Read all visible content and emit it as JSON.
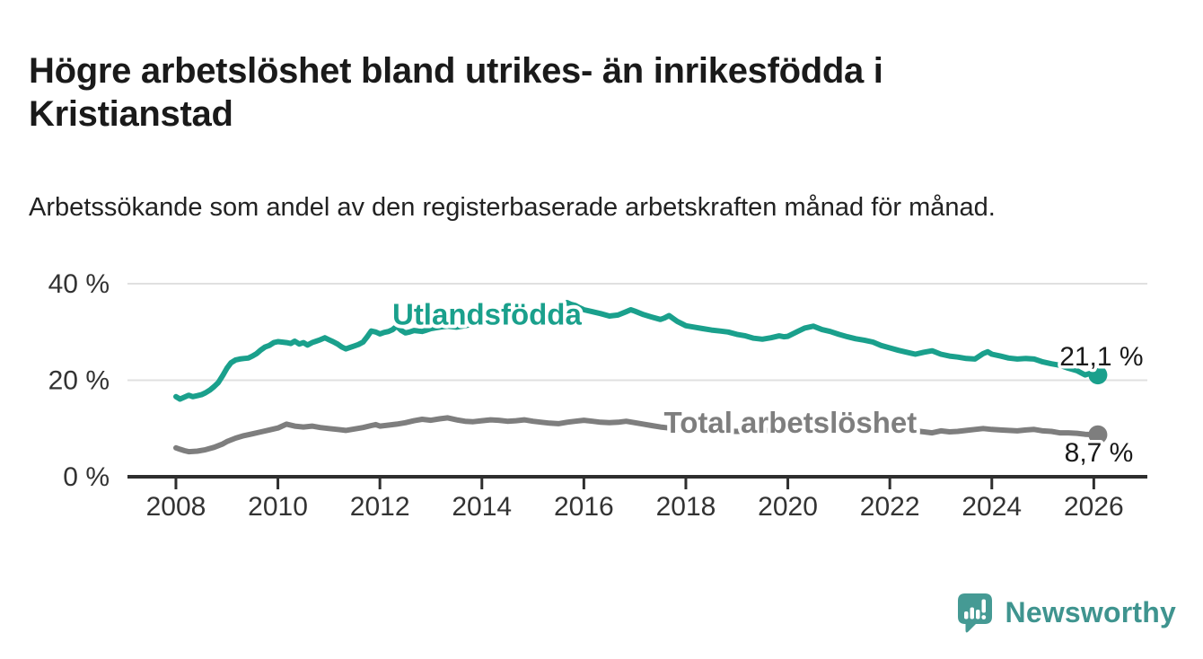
{
  "header": {
    "title": "Högre arbetslöshet bland utrikes- än inrikesfödda i Kristianstad",
    "subtitle": "Arbetssökande som andel av den registerbaserade arbetskraften månad för månad."
  },
  "chart_data": {
    "type": "line",
    "unit": "%",
    "grid": "horizontal",
    "legend_position": "inline-labels",
    "x_axis": {
      "range": [
        2007.05,
        2027.05
      ],
      "ticks": [
        2008,
        2010,
        2012,
        2014,
        2016,
        2018,
        2020,
        2022,
        2024,
        2026
      ]
    },
    "y_axis": {
      "range": [
        0,
        40
      ],
      "ticks": [
        {
          "v": 0,
          "label": "0 %"
        },
        {
          "v": 20,
          "label": "20 %"
        },
        {
          "v": 40,
          "label": "40 %"
        }
      ]
    },
    "colors": {
      "axis": "#2e2e2e",
      "gridline": "#e0e0e0",
      "tick_label": "#333333"
    },
    "series": [
      {
        "id": "utlandsfodda",
        "name": "Utlandsfödda",
        "color": "#1aa08c",
        "label_pos": {
          "x": 2014.1,
          "y": 33.6
        },
        "end_annotation": {
          "text": "21,1 %",
          "x": 2026.15,
          "y": 24.9
        },
        "end_value": 21.1,
        "points": [
          [
            2008.0,
            16.6
          ],
          [
            2008.08,
            16.1
          ],
          [
            2008.17,
            16.5
          ],
          [
            2008.25,
            16.9
          ],
          [
            2008.33,
            16.6
          ],
          [
            2008.42,
            16.8
          ],
          [
            2008.5,
            17.0
          ],
          [
            2008.58,
            17.4
          ],
          [
            2008.67,
            18.0
          ],
          [
            2008.75,
            18.7
          ],
          [
            2008.83,
            19.5
          ],
          [
            2008.92,
            21.0
          ],
          [
            2009.0,
            22.5
          ],
          [
            2009.08,
            23.6
          ],
          [
            2009.17,
            24.2
          ],
          [
            2009.25,
            24.4
          ],
          [
            2009.33,
            24.5
          ],
          [
            2009.42,
            24.6
          ],
          [
            2009.5,
            25.0
          ],
          [
            2009.58,
            25.5
          ],
          [
            2009.67,
            26.3
          ],
          [
            2009.75,
            26.9
          ],
          [
            2009.83,
            27.2
          ],
          [
            2009.92,
            27.8
          ],
          [
            2010.0,
            28.0
          ],
          [
            2010.08,
            27.9
          ],
          [
            2010.17,
            27.8
          ],
          [
            2010.25,
            27.6
          ],
          [
            2010.33,
            28.1
          ],
          [
            2010.42,
            27.5
          ],
          [
            2010.5,
            27.8
          ],
          [
            2010.58,
            27.3
          ],
          [
            2010.67,
            27.8
          ],
          [
            2010.75,
            28.1
          ],
          [
            2010.83,
            28.4
          ],
          [
            2010.92,
            28.8
          ],
          [
            2011.0,
            28.4
          ],
          [
            2011.08,
            28.0
          ],
          [
            2011.17,
            27.5
          ],
          [
            2011.25,
            26.9
          ],
          [
            2011.33,
            26.5
          ],
          [
            2011.42,
            26.8
          ],
          [
            2011.5,
            27.1
          ],
          [
            2011.58,
            27.4
          ],
          [
            2011.67,
            27.9
          ],
          [
            2011.75,
            29.0
          ],
          [
            2011.83,
            30.2
          ],
          [
            2011.92,
            30.0
          ],
          [
            2012.0,
            29.6
          ],
          [
            2012.08,
            29.9
          ],
          [
            2012.17,
            30.1
          ],
          [
            2012.25,
            30.5
          ],
          [
            2012.33,
            31.2
          ],
          [
            2012.42,
            30.3
          ],
          [
            2012.5,
            29.8
          ],
          [
            2012.58,
            30.0
          ],
          [
            2012.67,
            30.3
          ],
          [
            2012.83,
            30.1
          ],
          [
            2012.92,
            30.4
          ],
          [
            2013.0,
            30.7
          ],
          [
            2013.17,
            31.0
          ],
          [
            2013.33,
            31.2
          ],
          [
            2013.5,
            31.0
          ],
          [
            2013.67,
            31.3
          ],
          [
            2013.83,
            31.6
          ],
          [
            2014.0,
            31.9
          ],
          [
            2014.17,
            32.2
          ],
          [
            2014.33,
            32.0
          ],
          [
            2014.5,
            32.4
          ],
          [
            2014.67,
            32.8
          ],
          [
            2014.83,
            33.1
          ],
          [
            2015.0,
            33.0
          ],
          [
            2015.17,
            33.5
          ],
          [
            2015.33,
            34.2
          ],
          [
            2015.5,
            35.0
          ],
          [
            2015.58,
            35.4
          ],
          [
            2015.67,
            36.1
          ],
          [
            2015.75,
            35.7
          ],
          [
            2015.83,
            35.5
          ],
          [
            2015.92,
            35.0
          ],
          [
            2016.0,
            34.6
          ],
          [
            2016.17,
            34.2
          ],
          [
            2016.33,
            33.8
          ],
          [
            2016.5,
            33.3
          ],
          [
            2016.67,
            33.5
          ],
          [
            2016.83,
            34.2
          ],
          [
            2016.92,
            34.6
          ],
          [
            2017.0,
            34.3
          ],
          [
            2017.17,
            33.6
          ],
          [
            2017.33,
            33.1
          ],
          [
            2017.5,
            32.6
          ],
          [
            2017.58,
            32.9
          ],
          [
            2017.67,
            33.4
          ],
          [
            2017.83,
            32.2
          ],
          [
            2018.0,
            31.3
          ],
          [
            2018.17,
            31.0
          ],
          [
            2018.33,
            30.7
          ],
          [
            2018.5,
            30.4
          ],
          [
            2018.67,
            30.2
          ],
          [
            2018.83,
            30.0
          ],
          [
            2019.0,
            29.5
          ],
          [
            2019.17,
            29.2
          ],
          [
            2019.33,
            28.7
          ],
          [
            2019.5,
            28.5
          ],
          [
            2019.67,
            28.8
          ],
          [
            2019.83,
            29.2
          ],
          [
            2019.92,
            29.0
          ],
          [
            2020.0,
            29.1
          ],
          [
            2020.17,
            30.0
          ],
          [
            2020.33,
            30.8
          ],
          [
            2020.5,
            31.2
          ],
          [
            2020.67,
            30.5
          ],
          [
            2020.83,
            30.1
          ],
          [
            2021.0,
            29.5
          ],
          [
            2021.17,
            29.0
          ],
          [
            2021.33,
            28.6
          ],
          [
            2021.5,
            28.3
          ],
          [
            2021.67,
            27.9
          ],
          [
            2021.83,
            27.2
          ],
          [
            2022.0,
            26.7
          ],
          [
            2022.17,
            26.2
          ],
          [
            2022.33,
            25.8
          ],
          [
            2022.5,
            25.4
          ],
          [
            2022.67,
            25.8
          ],
          [
            2022.83,
            26.1
          ],
          [
            2023.0,
            25.4
          ],
          [
            2023.17,
            25.0
          ],
          [
            2023.33,
            24.8
          ],
          [
            2023.5,
            24.5
          ],
          [
            2023.67,
            24.4
          ],
          [
            2023.83,
            25.5
          ],
          [
            2023.92,
            25.9
          ],
          [
            2024.0,
            25.4
          ],
          [
            2024.17,
            25.0
          ],
          [
            2024.33,
            24.6
          ],
          [
            2024.5,
            24.4
          ],
          [
            2024.67,
            24.5
          ],
          [
            2024.83,
            24.4
          ],
          [
            2025.0,
            23.8
          ],
          [
            2025.17,
            23.4
          ],
          [
            2025.33,
            23.1
          ],
          [
            2025.5,
            22.5
          ],
          [
            2025.67,
            22.0
          ],
          [
            2025.83,
            21.1
          ],
          [
            2025.92,
            21.4
          ],
          [
            2026.08,
            21.1
          ]
        ]
      },
      {
        "id": "total",
        "name": "Total arbetslöshet",
        "color": "#7e7e7e",
        "label_pos": {
          "x": 2020.05,
          "y": 11.2
        },
        "end_annotation": {
          "text": "8,7 %",
          "x": 2026.1,
          "y": 5.0
        },
        "end_value": 8.7,
        "points": [
          [
            2008.0,
            6.0
          ],
          [
            2008.08,
            5.7
          ],
          [
            2008.17,
            5.4
          ],
          [
            2008.25,
            5.2
          ],
          [
            2008.42,
            5.3
          ],
          [
            2008.58,
            5.6
          ],
          [
            2008.75,
            6.1
          ],
          [
            2008.92,
            6.8
          ],
          [
            2009.0,
            7.3
          ],
          [
            2009.17,
            8.0
          ],
          [
            2009.33,
            8.5
          ],
          [
            2009.5,
            8.9
          ],
          [
            2009.67,
            9.3
          ],
          [
            2009.83,
            9.7
          ],
          [
            2010.0,
            10.1
          ],
          [
            2010.17,
            10.9
          ],
          [
            2010.33,
            10.5
          ],
          [
            2010.5,
            10.3
          ],
          [
            2010.67,
            10.5
          ],
          [
            2010.83,
            10.2
          ],
          [
            2011.0,
            10.0
          ],
          [
            2011.17,
            9.8
          ],
          [
            2011.33,
            9.6
          ],
          [
            2011.5,
            9.9
          ],
          [
            2011.67,
            10.2
          ],
          [
            2011.83,
            10.6
          ],
          [
            2011.92,
            10.8
          ],
          [
            2012.0,
            10.5
          ],
          [
            2012.17,
            10.7
          ],
          [
            2012.33,
            10.9
          ],
          [
            2012.5,
            11.2
          ],
          [
            2012.67,
            11.6
          ],
          [
            2012.83,
            11.9
          ],
          [
            2013.0,
            11.7
          ],
          [
            2013.17,
            12.0
          ],
          [
            2013.33,
            12.2
          ],
          [
            2013.5,
            11.8
          ],
          [
            2013.67,
            11.5
          ],
          [
            2013.83,
            11.4
          ],
          [
            2014.0,
            11.6
          ],
          [
            2014.17,
            11.8
          ],
          [
            2014.33,
            11.7
          ],
          [
            2014.5,
            11.5
          ],
          [
            2014.67,
            11.6
          ],
          [
            2014.83,
            11.8
          ],
          [
            2015.0,
            11.5
          ],
          [
            2015.17,
            11.3
          ],
          [
            2015.33,
            11.1
          ],
          [
            2015.5,
            11.0
          ],
          [
            2015.67,
            11.3
          ],
          [
            2015.83,
            11.5
          ],
          [
            2016.0,
            11.7
          ],
          [
            2016.17,
            11.5
          ],
          [
            2016.33,
            11.3
          ],
          [
            2016.5,
            11.2
          ],
          [
            2016.67,
            11.3
          ],
          [
            2016.83,
            11.5
          ],
          [
            2017.0,
            11.2
          ],
          [
            2017.17,
            10.9
          ],
          [
            2017.33,
            10.6
          ],
          [
            2017.5,
            10.3
          ],
          [
            2017.67,
            10.1
          ],
          [
            2018.0,
            9.9
          ],
          [
            2018.33,
            9.7
          ],
          [
            2018.67,
            9.5
          ],
          [
            2019.0,
            9.4
          ],
          [
            2019.33,
            9.5
          ],
          [
            2019.67,
            9.6
          ],
          [
            2020.0,
            9.8
          ],
          [
            2020.25,
            10.6
          ],
          [
            2020.5,
            11.0
          ],
          [
            2020.75,
            10.7
          ],
          [
            2021.0,
            10.4
          ],
          [
            2021.33,
            10.0
          ],
          [
            2021.67,
            9.8
          ],
          [
            2022.0,
            9.6
          ],
          [
            2022.33,
            9.5
          ],
          [
            2022.5,
            9.5
          ],
          [
            2022.67,
            9.3
          ],
          [
            2022.83,
            9.1
          ],
          [
            2023.0,
            9.5
          ],
          [
            2023.17,
            9.3
          ],
          [
            2023.33,
            9.4
          ],
          [
            2023.5,
            9.6
          ],
          [
            2023.67,
            9.8
          ],
          [
            2023.83,
            10.0
          ],
          [
            2024.0,
            9.8
          ],
          [
            2024.17,
            9.7
          ],
          [
            2024.33,
            9.6
          ],
          [
            2024.5,
            9.5
          ],
          [
            2024.67,
            9.7
          ],
          [
            2024.83,
            9.8
          ],
          [
            2025.0,
            9.5
          ],
          [
            2025.17,
            9.4
          ],
          [
            2025.33,
            9.1
          ],
          [
            2025.5,
            9.1
          ],
          [
            2025.67,
            9.0
          ],
          [
            2025.83,
            8.8
          ],
          [
            2026.08,
            8.7
          ]
        ]
      }
    ]
  },
  "branding": {
    "name": "Newsworthy",
    "text_color": "#3f948f",
    "icon_color": "#459a94",
    "icon": "newsworthy-speech-bubble-bar-chart"
  }
}
